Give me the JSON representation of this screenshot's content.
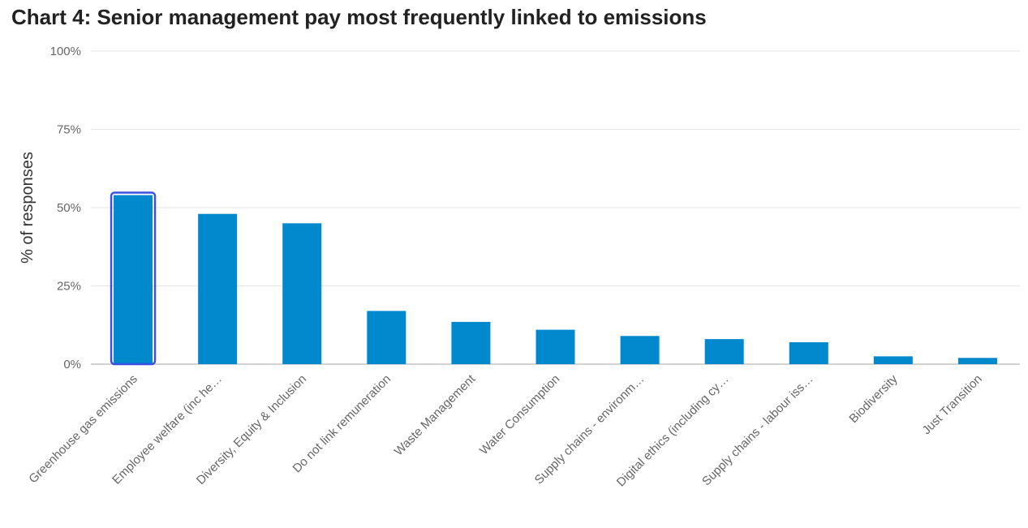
{
  "chart_data": {
    "type": "bar",
    "title": "Chart 4: Senior management pay most frequently linked to emissions",
    "xlabel": "",
    "ylabel": "% of responses",
    "ylim": [
      0,
      100
    ],
    "yticks": [
      "0%",
      "25%",
      "50%",
      "75%",
      "100%"
    ],
    "ytick_values": [
      0,
      25,
      50,
      75,
      100
    ],
    "grid": true,
    "legend": "none",
    "bar_color": "#0288CC",
    "highlight_color": "#3B4FE0",
    "highlighted_index": 0,
    "categories": [
      "Greenhouse gas emissions",
      "Employee welfare (inc he…",
      "Diversity, Equity & Inclusion",
      "Do not link remuneration",
      "Waste Management",
      "Water Consumption",
      "Supply chains - environm…",
      "Digital ethics (including cy…",
      "Supply chains - labour iss…",
      "Biodiversity",
      "Just Transition"
    ],
    "values": [
      54,
      48,
      45,
      17,
      13.5,
      11,
      9,
      8,
      7,
      2.5,
      2
    ]
  }
}
